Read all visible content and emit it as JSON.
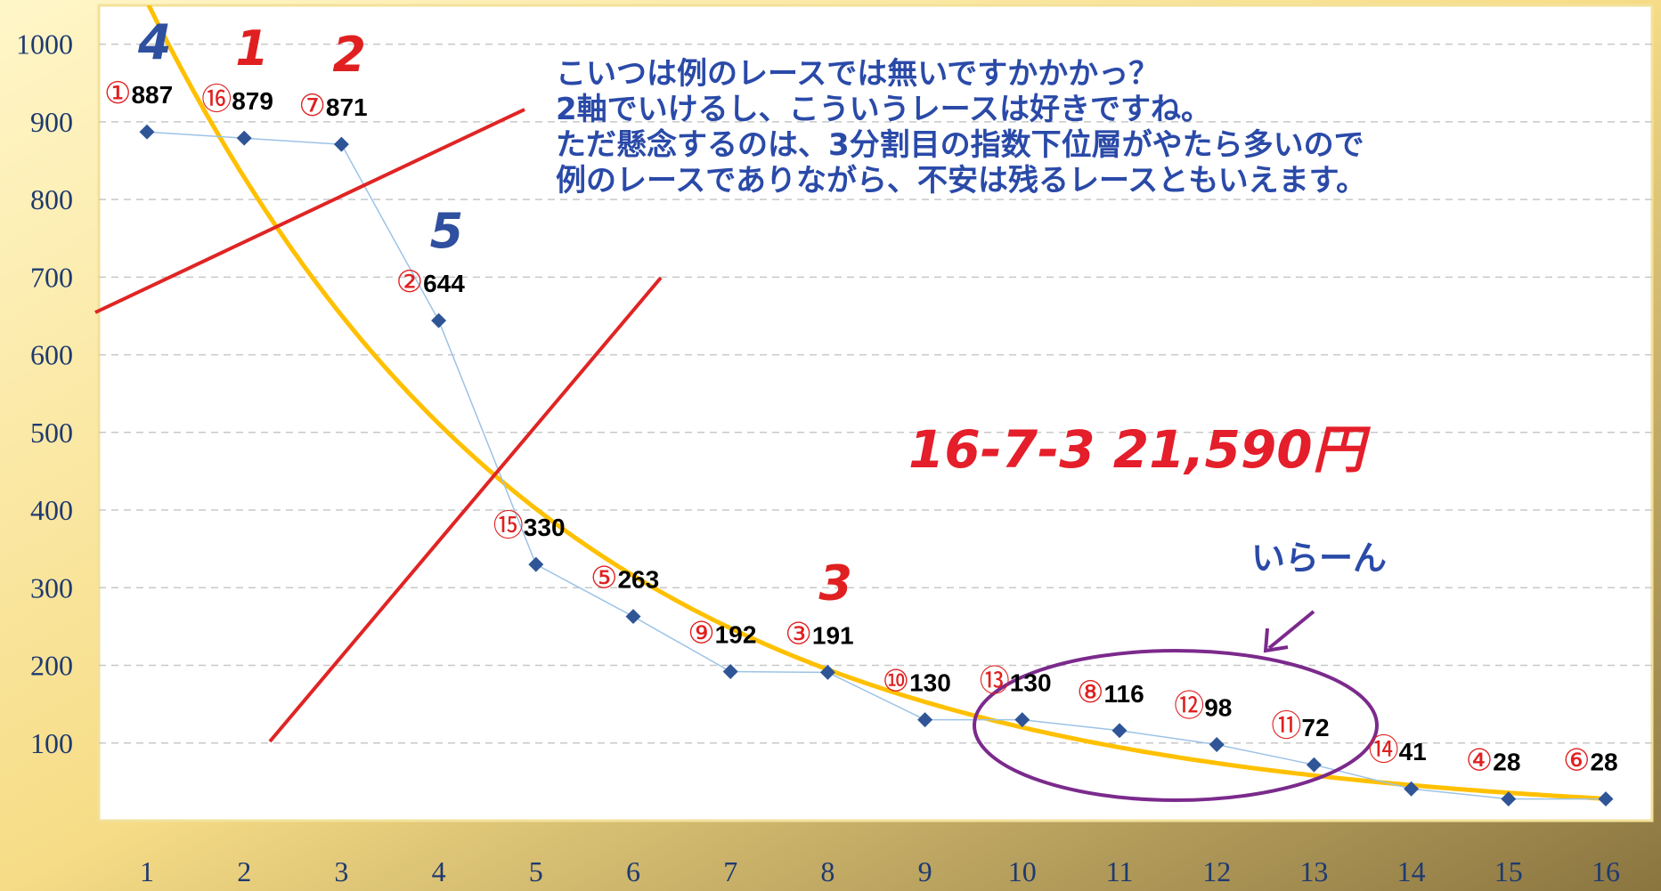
{
  "chart_data": {
    "type": "line",
    "categories": [
      "1",
      "2",
      "3",
      "4",
      "5",
      "6",
      "7",
      "8",
      "9",
      "10",
      "11",
      "12",
      "13",
      "14",
      "15",
      "16"
    ],
    "series": [
      {
        "color": "#9cc3e6",
        "marker_color": "#2f5597",
        "values": [
          887,
          879,
          871,
          644,
          330,
          263,
          192,
          191,
          130,
          130,
          116,
          98,
          72,
          41,
          28,
          28
        ]
      }
    ],
    "markers": [
      "①",
      "⑯",
      "⑦",
      "②",
      "⑮",
      "⑤",
      "⑨",
      "③",
      "⑩",
      "⑬",
      "⑧",
      "⑫",
      "⑪",
      "⑭",
      "④",
      "⑥"
    ],
    "ylim": [
      0,
      1050
    ],
    "yticks": [
      100,
      200,
      300,
      400,
      500,
      600,
      700,
      800,
      900,
      1000
    ],
    "grid": true,
    "trendline": {
      "type": "exponential",
      "color": "#ffc000"
    },
    "annotations": [
      {
        "text": "4",
        "color": "#2f4f9f",
        "point": 0
      },
      {
        "text": "1",
        "color": "#e02020",
        "point": 1
      },
      {
        "text": "2",
        "color": "#e02020",
        "point": 2
      },
      {
        "text": "5",
        "color": "#2f4f9f",
        "point": 3
      },
      {
        "text": "3",
        "color": "#e02020",
        "point": 7
      }
    ],
    "comment": [
      "こいつは例のレースでは無いですかかかっ？",
      "2軸でいけるし、こういうレースは好きですね。",
      "ただ懸念するのは、3分割目の指数下位層がやたら多いので",
      "例のレースでありながら、不安は残るレースともいえます。"
    ],
    "result": "16-7-3  21,590円",
    "note": "いらーん"
  }
}
